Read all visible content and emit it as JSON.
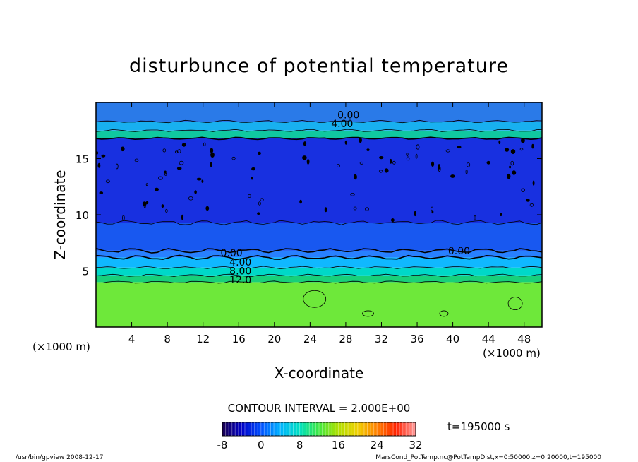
{
  "chart_data": {
    "type": "heatmap",
    "title": "disturbunce of potential temperature",
    "xlabel": "X-coordinate",
    "ylabel": "Z-coordinate",
    "x_unit": "(×1000 m)",
    "y_unit": "(×1000 m)",
    "xlim": [
      0,
      50
    ],
    "ylim": [
      0,
      20
    ],
    "x_ticks": [
      4,
      8,
      12,
      16,
      20,
      24,
      28,
      32,
      36,
      40,
      44,
      48
    ],
    "y_ticks": [
      5,
      10,
      15
    ],
    "contour_interval": "CONTOUR INTERVAL = 2.000E+00",
    "time": "t=195000 s",
    "colorbar": {
      "min": -8,
      "max": 32,
      "ticks": [
        -8,
        0,
        8,
        16,
        24,
        32
      ],
      "colors": [
        "#1a0050",
        "#0000c8",
        "#0050ff",
        "#00b4ff",
        "#00e0c0",
        "#40e840",
        "#b0e000",
        "#f0d000",
        "#ff8000",
        "#ff2000",
        "#ffa0a0"
      ]
    },
    "layers": [
      {
        "z_from": 0,
        "z_to": 4,
        "value": 16,
        "color": "#6ee83a"
      },
      {
        "z_from": 4,
        "z_to": 4.6,
        "value": 12,
        "color": "#18d07a"
      },
      {
        "z_from": 4.6,
        "z_to": 5.3,
        "value": 8,
        "color": "#00d8c8"
      },
      {
        "z_from": 5.3,
        "z_to": 6.2,
        "value": 4,
        "color": "#10b8ff"
      },
      {
        "z_from": 6.2,
        "z_to": 6.8,
        "value": 0,
        "color": "#2880ff"
      },
      {
        "z_from": 6.8,
        "z_to": 9.3,
        "value": -2,
        "color": "#1858f0"
      },
      {
        "z_from": 9.3,
        "z_to": 16.8,
        "value": -4,
        "color": "#1830e0"
      },
      {
        "z_from": 16.8,
        "z_to": 17.5,
        "value": 8,
        "color": "#10c8a0"
      },
      {
        "z_from": 17.5,
        "z_to": 18.3,
        "value": 4,
        "color": "#18b0f0"
      },
      {
        "z_from": 18.3,
        "z_to": 20,
        "value": 0,
        "color": "#2a7ae8"
      }
    ],
    "contour_labels": [
      {
        "text": "0.00",
        "x": 28.3,
        "z": 18.9
      },
      {
        "text": "4.00",
        "x": 27.6,
        "z": 18.1
      },
      {
        "text": "0.00",
        "x": 15.2,
        "z": 6.6
      },
      {
        "text": "4.00",
        "x": 16.2,
        "z": 5.8
      },
      {
        "text": "8.00",
        "x": 16.2,
        "z": 5.0
      },
      {
        "text": "12.0",
        "x": 16.2,
        "z": 4.2
      },
      {
        "text": "0.00",
        "x": 40.7,
        "z": 6.8
      }
    ]
  },
  "footer": {
    "left": "/usr/bin/gpview   2008-12-17",
    "right": "MarsCond_PotTemp.nc@PotTempDist,x=0:50000,z=0:20000,t=195000"
  }
}
